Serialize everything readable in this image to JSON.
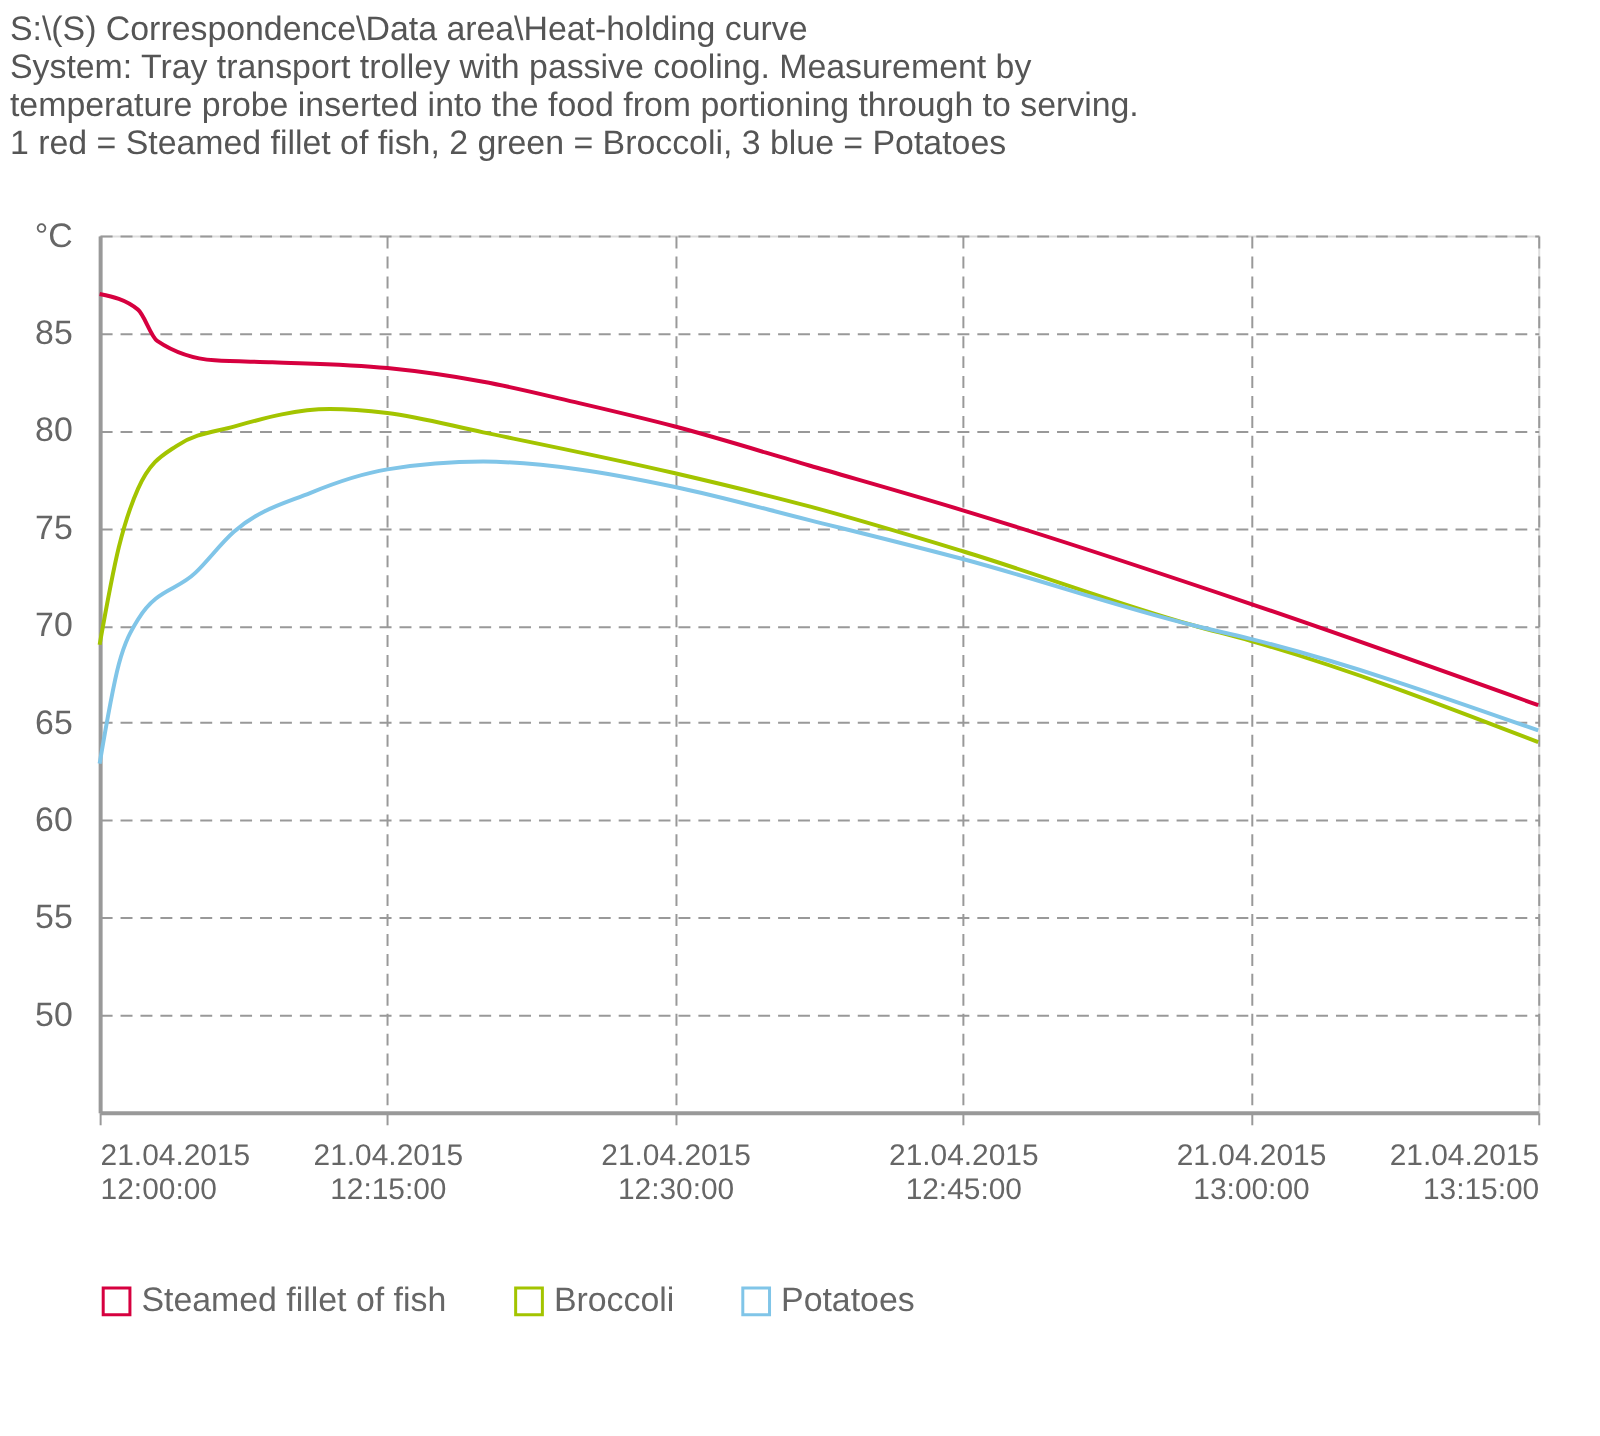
{
  "chart_data": {
    "type": "line",
    "title": "S:\\(S) Correspondence\\Data area\\Heat-holding curve",
    "subtitle": "System: Tray transport trolley with passive cooling. Measurement by\ntemperature probe inserted into the food from portioning through to serving.\n1 red = Steamed fillet of fish, 2 green = Broccoli, 3 blue = Potatoes",
    "series": [
      {
        "name": "Steamed fillet of fish",
        "color": "#d6003f",
        "x": [
          "2015-04-21T12:00",
          "2015-04-21T12:02",
          "2015-04-21T12:03",
          "2015-04-21T12:06",
          "2015-04-21T12:09",
          "2015-04-21T12:15",
          "2015-04-21T12:20",
          "2015-04-21T12:25",
          "2015-04-21T12:30",
          "2015-04-21T12:37",
          "2015-04-21T12:45",
          "2015-04-21T13:00",
          "2015-04-21T13:15"
        ],
        "values": [
          87.0,
          86.2,
          84.6,
          83.6,
          83.5,
          83.2,
          82.5,
          81.4,
          80.2,
          78.2,
          75.9,
          71.1,
          65.9
        ]
      },
      {
        "name": "Broccoli",
        "color": "#a3c400",
        "x": [
          "2015-04-21T12:00",
          "2015-04-21T12:01",
          "2015-04-21T12:02",
          "2015-04-21T12:04",
          "2015-04-21T12:07",
          "2015-04-21T12:12",
          "2015-04-21T12:15",
          "2015-04-21T12:20",
          "2015-04-21T12:30",
          "2015-04-21T12:37",
          "2015-04-21T12:45",
          "2015-04-21T12:57",
          "2015-04-21T13:00",
          "2015-04-21T13:15"
        ],
        "values": [
          69.0,
          74.0,
          77.0,
          79.2,
          80.2,
          81.1,
          80.9,
          79.9,
          77.8,
          76.1,
          73.8,
          70.0,
          69.2,
          64.0
        ]
      },
      {
        "name": "Potatoes",
        "color": "#80c5e8",
        "x": [
          "2015-04-21T12:00",
          "2015-04-21T12:01",
          "2015-04-21T12:02",
          "2015-04-21T12:05",
          "2015-04-21T12:07",
          "2015-04-21T12:11",
          "2015-04-21T12:15",
          "2015-04-21T12:20",
          "2015-04-21T12:25",
          "2015-04-21T12:30",
          "2015-04-21T12:37",
          "2015-04-21T12:45",
          "2015-04-21T12:57",
          "2015-04-21T13:00",
          "2015-04-21T13:15"
        ],
        "values": [
          62.9,
          68.0,
          70.3,
          72.7,
          74.8,
          76.8,
          78.0,
          78.4,
          78.0,
          77.1,
          75.4,
          73.4,
          70.0,
          69.3,
          64.6
        ]
      }
    ],
    "xlim": [
      "2015-04-21T12:00",
      "2015-04-21T13:15"
    ],
    "xticks": [
      {
        "value": "2015-04-21T12:00",
        "label": "21.04.2015\n12:00:00"
      },
      {
        "value": "2015-04-21T12:15",
        "label": "21.04.2015\n12:15:00"
      },
      {
        "value": "2015-04-21T12:30",
        "label": "21.04.2015\n12:30:00"
      },
      {
        "value": "2015-04-21T12:45",
        "label": "21.04.2015\n12:45:00"
      },
      {
        "value": "2015-04-21T13:00",
        "label": "21.04.2015\n13:00:00"
      },
      {
        "value": "2015-04-21T13:15",
        "label": "21.04.2015\n13:15:00"
      }
    ],
    "ylim": [
      45,
      90
    ],
    "yticks": [
      50,
      55,
      60,
      65,
      70,
      75,
      80,
      85,
      {
        "value": 90,
        "label": "°C"
      }
    ],
    "grid": true,
    "legend": "bottom",
    "marker": "none",
    "line_style": "solid"
  }
}
